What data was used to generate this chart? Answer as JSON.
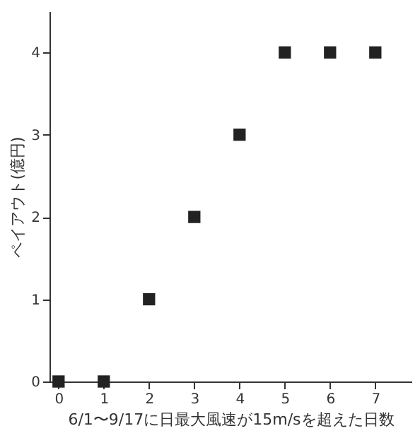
{
  "chart_data": {
    "type": "scatter",
    "xlabel": "6/1〜9/17に日最大風速が15m/sを超えた日数",
    "ylabel": "ペイアウト(億円)",
    "x": [
      0,
      1,
      2,
      3,
      4,
      5,
      6,
      7
    ],
    "series": [
      {
        "color": "#222222",
        "values": [
          0,
          0,
          1,
          2,
          3,
          4,
          4,
          4
        ]
      }
    ],
    "marker": "square",
    "xlim": [
      -0.2,
      7.8
    ],
    "xticks": [
      0,
      1,
      2,
      3,
      4,
      5,
      6,
      7
    ],
    "ylim": [
      0,
      4.5
    ],
    "yticks": [
      0,
      1,
      2,
      3,
      4
    ],
    "grid": false
  }
}
